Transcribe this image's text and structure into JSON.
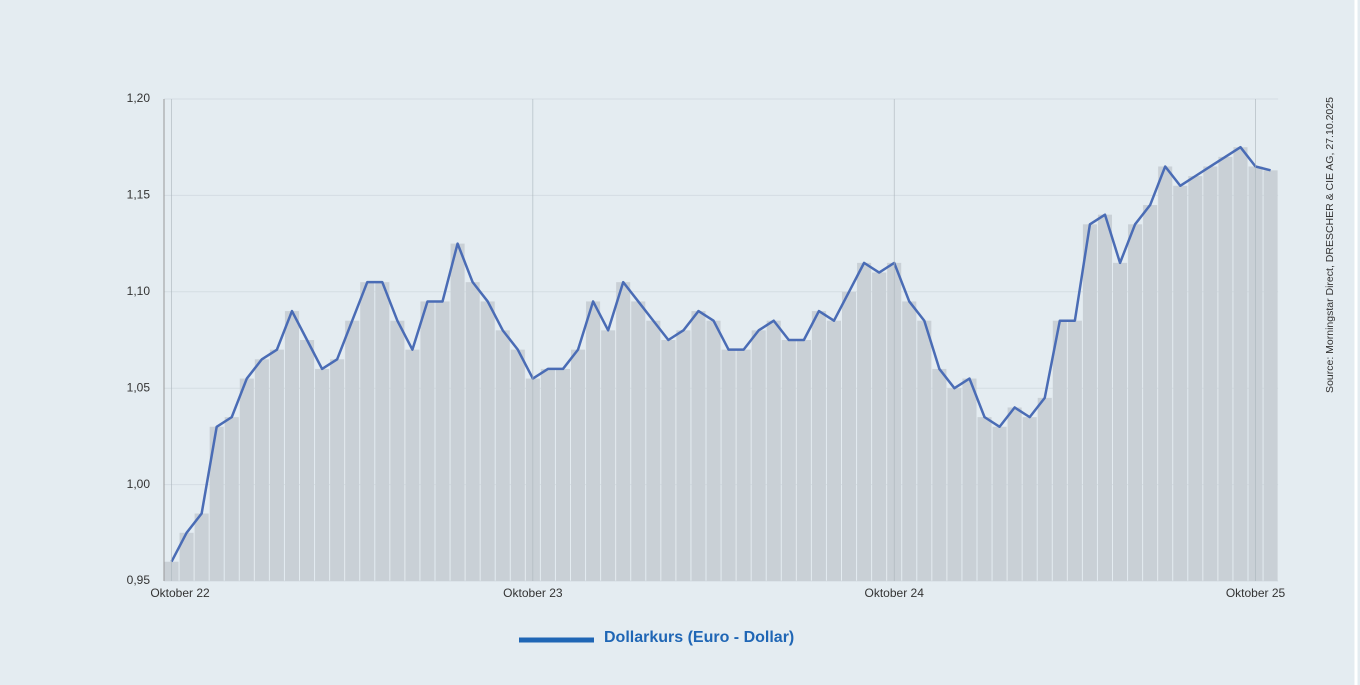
{
  "chart_data": {
    "type": "area-line",
    "source": "Source: Morningstar Direct, DRESCHER & CIE AG, 27.10.2025",
    "categories": [
      "Oktober 22",
      null,
      null,
      null,
      null,
      null,
      null,
      null,
      null,
      null,
      null,
      null,
      null,
      null,
      null,
      null,
      null,
      null,
      null,
      null,
      null,
      null,
      null,
      null,
      "Oktober 23",
      null,
      null,
      null,
      null,
      null,
      null,
      null,
      null,
      null,
      null,
      null,
      null,
      null,
      null,
      null,
      null,
      null,
      null,
      null,
      null,
      null,
      null,
      null,
      "Oktober 24",
      null,
      null,
      null,
      null,
      null,
      null,
      null,
      null,
      null,
      null,
      null,
      null,
      null,
      null,
      null,
      null,
      null,
      null,
      null,
      null,
      null,
      null,
      null,
      "Oktober 25",
      null
    ],
    "series": [
      {
        "name": "Dollarkurs (Euro - Dollar)",
        "color": "#4a6cb5",
        "fill": "#c9d0d6",
        "values": [
          0.96,
          0.975,
          0.985,
          1.03,
          1.035,
          1.055,
          1.065,
          1.07,
          1.09,
          1.075,
          1.06,
          1.065,
          1.085,
          1.105,
          1.105,
          1.085,
          1.07,
          1.095,
          1.095,
          1.125,
          1.105,
          1.095,
          1.08,
          1.07,
          1.055,
          1.06,
          1.06,
          1.07,
          1.095,
          1.08,
          1.105,
          1.095,
          1.085,
          1.075,
          1.08,
          1.09,
          1.085,
          1.07,
          1.07,
          1.08,
          1.085,
          1.075,
          1.075,
          1.09,
          1.085,
          1.1,
          1.115,
          1.11,
          1.115,
          1.095,
          1.085,
          1.06,
          1.05,
          1.055,
          1.035,
          1.03,
          1.04,
          1.035,
          1.045,
          1.085,
          1.085,
          1.135,
          1.14,
          1.115,
          1.135,
          1.145,
          1.165,
          1.155,
          1.16,
          1.165,
          1.17,
          1.175,
          1.165,
          1.163
        ]
      }
    ],
    "ylim": [
      0.95,
      1.2
    ],
    "yticks": [
      {
        "value": 0.95,
        "label": "0,95"
      },
      {
        "value": 1.0,
        "label": "1,00"
      },
      {
        "value": 1.05,
        "label": "1,05"
      },
      {
        "value": 1.1,
        "label": "1,10"
      },
      {
        "value": 1.15,
        "label": "1,15"
      },
      {
        "value": 1.2,
        "label": "1,20"
      }
    ],
    "grid": true
  }
}
